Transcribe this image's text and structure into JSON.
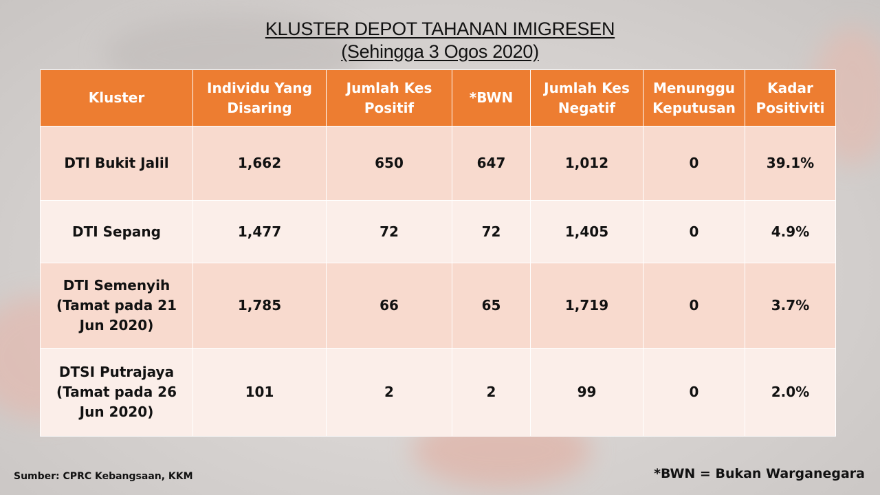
{
  "title": {
    "line1": "KLUSTER DEPOT TAHANAN IMIGRESEN",
    "line2": "(Sehingga 3 Ogos 2020)"
  },
  "table": {
    "headers": [
      "Kluster",
      "Individu Yang Disaring",
      "Jumlah Kes Positif",
      "*BWN",
      "Jumlah Kes Negatif",
      "Menunggu Keputusan",
      "Kadar Positiviti"
    ],
    "rows": [
      {
        "kluster": "DTI Bukit Jalil",
        "individu": "1,662",
        "positif": "650",
        "bwn": "647",
        "negatif": "1,012",
        "menunggu": "0",
        "kadar": "39.1%"
      },
      {
        "kluster": "DTI Sepang",
        "individu": "1,477",
        "positif": "72",
        "bwn": "72",
        "negatif": "1,405",
        "menunggu": "0",
        "kadar": "4.9%"
      },
      {
        "kluster": "DTI Semenyih (Tamat pada 21 Jun 2020)",
        "individu": "1,785",
        "positif": "66",
        "bwn": "65",
        "negatif": "1,719",
        "menunggu": "0",
        "kadar": "3.7%"
      },
      {
        "kluster": "DTSI Putrajaya (Tamat pada 26 Jun 2020)",
        "individu": "101",
        "positif": "2",
        "bwn": "2",
        "negatif": "99",
        "menunggu": "0",
        "kadar": "2.0%"
      }
    ]
  },
  "footer": {
    "source": "Sumber: CPRC Kebangsaan, KKM",
    "note": "*BWN = Bukan Warganegara"
  },
  "colors": {
    "header_bg": "#ed7d31",
    "row_odd_bg": "#f8dace",
    "row_even_bg": "#fbeee9"
  }
}
